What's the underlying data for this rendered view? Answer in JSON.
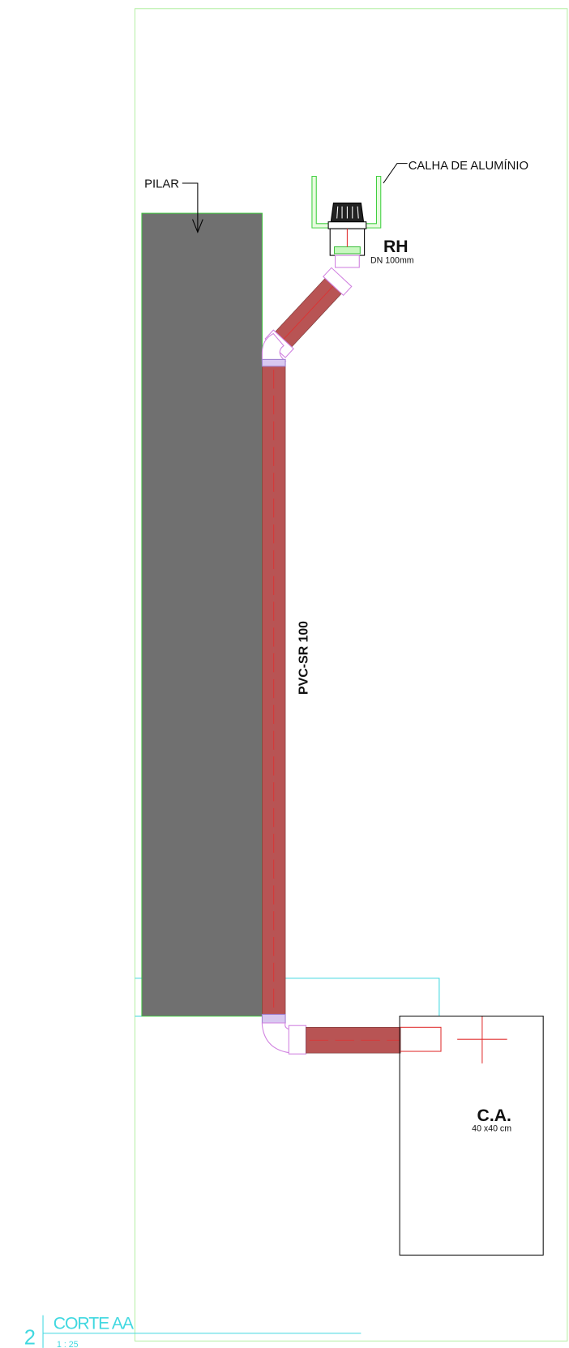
{
  "labels": {
    "pilar": "PILAR",
    "gutter": "CALHA DE ALUMÍNIO",
    "drain": "RH",
    "drain_size": "DN 100mm",
    "pipe": "PVC-SR 100",
    "box": "C.A.",
    "box_size": "40 x40 cm"
  },
  "view": {
    "number": "2",
    "title": "CORTE AA",
    "scale": "1 : 25"
  }
}
